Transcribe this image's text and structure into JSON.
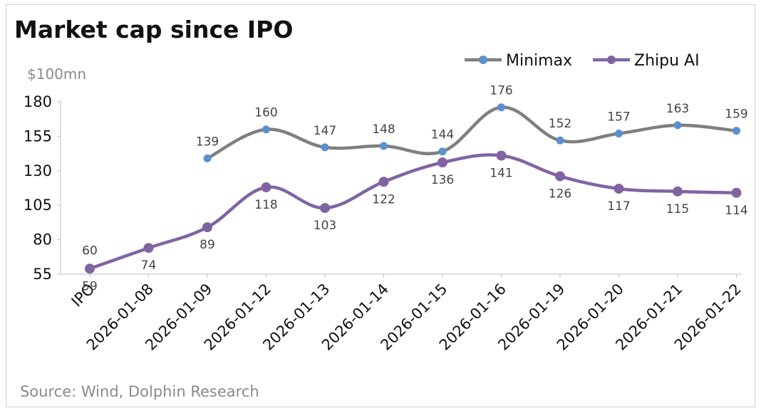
{
  "chart_data": {
    "type": "line",
    "title": "Market cap since IPO",
    "ylabel": "$100mn",
    "xlabel": "",
    "source": "Source:  Wind, Dolphin Research",
    "ylim": [
      55,
      180
    ],
    "yticks": [
      55,
      80,
      105,
      130,
      155,
      180
    ],
    "categories": [
      "IPO",
      "2026-01-08",
      "2026-01-09",
      "2026-01-12",
      "2026-01-13",
      "2026-01-14",
      "2026-01-15",
      "2026-01-16",
      "2026-01-19",
      "2026-01-20",
      "2026-01-21",
      "2026-01-22"
    ],
    "legend_position": "top-right",
    "series": [
      {
        "name": "Minimax",
        "color": "#7f7f7f",
        "marker_color": "#5b8fd0",
        "values": [
          60,
          null,
          139,
          160,
          147,
          148,
          144,
          176,
          152,
          157,
          163,
          159
        ],
        "label_pos": [
          "above",
          null,
          "above",
          "above",
          "above",
          "above",
          "above",
          "above",
          "above",
          "above",
          "above",
          "above"
        ]
      },
      {
        "name": "Zhipu AI",
        "color": "#8064a2",
        "marker_color": "#8064a2",
        "values": [
          59,
          74,
          89,
          118,
          103,
          122,
          136,
          141,
          126,
          117,
          115,
          114
        ],
        "label_pos": [
          "below",
          "below",
          "below",
          "below",
          "below",
          "below",
          "below",
          "below",
          "below",
          "below",
          "below",
          "below"
        ]
      }
    ]
  }
}
